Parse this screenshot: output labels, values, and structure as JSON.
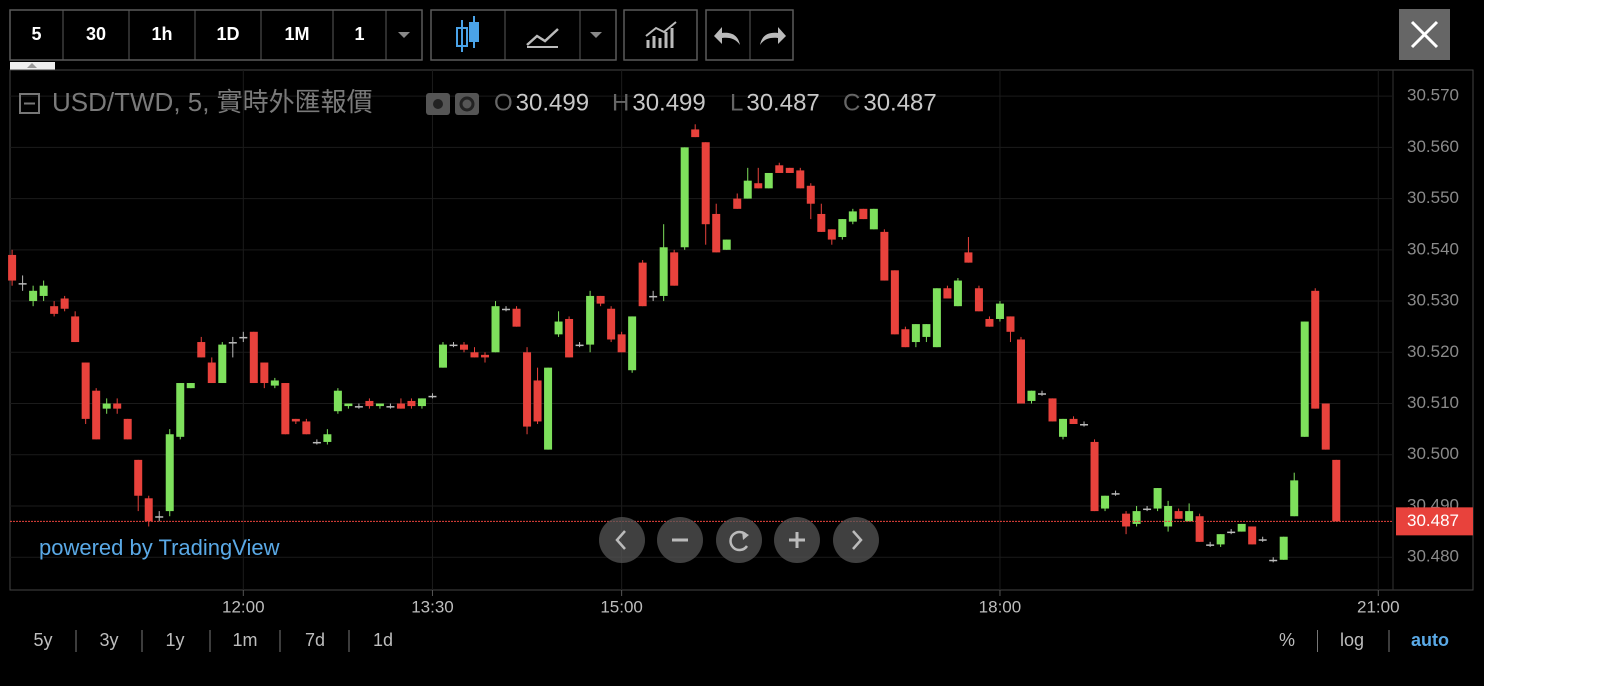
{
  "toolbar": {
    "intervals": [
      "5",
      "30",
      "1h",
      "1D",
      "1M",
      "1"
    ],
    "active": 0
  },
  "range_bar": {
    "ranges": [
      "5y",
      "3y",
      "1y",
      "1m",
      "7d",
      "1d"
    ],
    "options": [
      "%",
      "log",
      "auto"
    ],
    "active_option": 2
  },
  "chart_data": {
    "type": "candlestick",
    "symbol": "USD/TWD, 5, 實時外匯報價",
    "ohlc_legend": [
      {
        "label": "O",
        "value": 30.499
      },
      {
        "label": "H",
        "value": 30.499
      },
      {
        "label": "L",
        "value": 30.487
      },
      {
        "label": "C",
        "value": 30.487
      }
    ],
    "watermark": "powered by TradingView",
    "up_color": "#7ee05c",
    "down_color": "#e8423c",
    "grid": true,
    "xlim": [
      "10:09",
      "21:07"
    ],
    "xticks": [
      "12:00",
      "13:30",
      "15:00",
      "18:00",
      "21:00"
    ],
    "ylim": [
      30.4736,
      30.5751
    ],
    "yticks": [
      {
        "value": 30.48,
        "label": "30.480"
      },
      {
        "value": 30.49,
        "label": "30.490"
      },
      {
        "value": 30.5,
        "label": "30.500"
      },
      {
        "value": 30.51,
        "label": "30.510"
      },
      {
        "value": 30.52,
        "label": "30.520"
      },
      {
        "value": 30.53,
        "label": "30.530"
      },
      {
        "value": 30.54,
        "label": "30.540"
      },
      {
        "value": 30.55,
        "label": "30.550"
      },
      {
        "value": 30.56,
        "label": "30.560"
      },
      {
        "value": 30.57,
        "label": "30.570"
      }
    ],
    "last_price": {
      "value": 30.487,
      "label": "30.487"
    },
    "x": [
      "10:10",
      "10:15",
      "10:20",
      "10:25",
      "10:30",
      "10:35",
      "10:40",
      "10:45",
      "10:50",
      "10:55",
      "11:00",
      "11:05",
      "11:10",
      "11:15",
      "11:20",
      "11:25",
      "11:30",
      "11:35",
      "11:40",
      "11:45",
      "11:50",
      "11:55",
      "12:00",
      "12:05",
      "12:10",
      "12:15",
      "12:20",
      "12:25",
      "12:30",
      "12:35",
      "12:40",
      "12:45",
      "12:50",
      "12:55",
      "13:00",
      "13:05",
      "13:10",
      "13:15",
      "13:20",
      "13:25",
      "13:30",
      "13:35",
      "13:40",
      "13:45",
      "13:50",
      "13:55",
      "14:00",
      "14:05",
      "14:10",
      "14:15",
      "14:20",
      "14:25",
      "14:30",
      "14:35",
      "14:40",
      "14:45",
      "14:50",
      "14:55",
      "15:00",
      "15:05",
      "15:10",
      "15:15",
      "15:20",
      "15:25",
      "15:30",
      "15:35",
      "15:40",
      "15:45",
      "15:50",
      "15:55",
      "16:00",
      "16:05",
      "16:10",
      "16:15",
      "16:20",
      "16:25",
      "16:30",
      "16:35",
      "16:40",
      "16:45",
      "16:50",
      "16:55",
      "17:00",
      "17:05",
      "17:10",
      "17:15",
      "17:20",
      "17:25",
      "17:30",
      "17:35",
      "17:40",
      "17:45",
      "17:50",
      "17:55",
      "18:00",
      "18:05",
      "18:10",
      "18:15",
      "18:20",
      "18:25",
      "18:30",
      "18:35",
      "18:40",
      "18:45",
      "18:50",
      "18:55",
      "19:00",
      "19:05",
      "19:10",
      "19:15",
      "19:20",
      "19:25",
      "19:30",
      "19:35",
      "19:40",
      "19:45",
      "19:50",
      "19:55",
      "20:00",
      "20:05",
      "20:10",
      "20:15",
      "20:20",
      "20:25",
      "20:30",
      "20:35",
      "20:40"
    ],
    "ohlc": [
      [
        30.539,
        30.54,
        30.533,
        30.534
      ],
      [
        30.5335,
        30.535,
        30.532,
        30.5335
      ],
      [
        30.53,
        30.533,
        30.529,
        30.532
      ],
      [
        30.531,
        30.534,
        30.53,
        30.533
      ],
      [
        30.529,
        30.53,
        30.527,
        30.5275
      ],
      [
        30.5305,
        30.531,
        30.528,
        30.5285
      ],
      [
        30.527,
        30.528,
        30.522,
        30.522
      ],
      [
        30.518,
        30.518,
        30.506,
        30.507
      ],
      [
        30.5125,
        30.513,
        30.503,
        30.503
      ],
      [
        30.509,
        30.511,
        30.508,
        30.51
      ],
      [
        30.51,
        30.511,
        30.508,
        30.509
      ],
      [
        30.507,
        30.507,
        30.503,
        30.503
      ],
      [
        30.499,
        30.499,
        30.489,
        30.492
      ],
      [
        30.4915,
        30.492,
        30.486,
        30.487
      ],
      [
        30.488,
        30.489,
        30.487,
        30.488
      ],
      [
        30.489,
        30.505,
        30.488,
        30.504
      ],
      [
        30.5035,
        30.514,
        30.503,
        30.514
      ],
      [
        30.513,
        30.514,
        30.513,
        30.514
      ],
      [
        30.522,
        30.523,
        30.519,
        30.519
      ],
      [
        30.518,
        30.519,
        30.514,
        30.514
      ],
      [
        30.514,
        30.522,
        30.514,
        30.5215
      ],
      [
        30.522,
        30.523,
        30.519,
        30.522
      ],
      [
        30.523,
        30.524,
        30.522,
        30.523
      ],
      [
        30.524,
        30.524,
        30.514,
        30.514
      ],
      [
        30.518,
        30.518,
        30.513,
        30.514
      ],
      [
        30.5135,
        30.515,
        30.513,
        30.5145
      ],
      [
        30.514,
        30.514,
        30.504,
        30.504
      ],
      [
        30.507,
        30.507,
        30.506,
        30.5065
      ],
      [
        30.5065,
        30.507,
        30.504,
        30.504
      ],
      [
        30.5025,
        30.503,
        30.502,
        30.5025
      ],
      [
        30.5025,
        30.505,
        30.502,
        30.504
      ],
      [
        30.5085,
        30.513,
        30.508,
        30.5125
      ],
      [
        30.5095,
        30.51,
        30.509,
        30.51
      ],
      [
        30.5095,
        30.51,
        30.509,
        30.5095
      ],
      [
        30.5105,
        30.511,
        30.509,
        30.5095
      ],
      [
        30.5095,
        30.51,
        30.509,
        30.51
      ],
      [
        30.5095,
        30.51,
        30.509,
        30.5095
      ],
      [
        30.51,
        30.511,
        30.509,
        30.509
      ],
      [
        30.5105,
        30.511,
        30.509,
        30.5095
      ],
      [
        30.5095,
        30.511,
        30.509,
        30.511
      ],
      [
        30.5115,
        30.512,
        30.511,
        30.5115
      ],
      [
        30.517,
        30.522,
        30.517,
        30.5215
      ],
      [
        30.5215,
        30.522,
        30.521,
        30.5215
      ],
      [
        30.5215,
        30.522,
        30.52,
        30.5205
      ],
      [
        30.52,
        30.521,
        30.519,
        30.519
      ],
      [
        30.5195,
        30.52,
        30.518,
        30.519
      ],
      [
        30.52,
        30.53,
        30.52,
        30.529
      ],
      [
        30.5285,
        30.529,
        30.528,
        30.5285
      ],
      [
        30.5285,
        30.529,
        30.525,
        30.525
      ],
      [
        30.52,
        30.521,
        30.504,
        30.5055
      ],
      [
        30.5145,
        30.517,
        30.506,
        30.5065
      ],
      [
        30.501,
        30.517,
        30.501,
        30.517
      ],
      [
        30.5235,
        30.528,
        30.523,
        30.526
      ],
      [
        30.5265,
        30.527,
        30.519,
        30.519
      ],
      [
        30.5215,
        30.522,
        30.521,
        30.5215
      ],
      [
        30.5215,
        30.532,
        30.52,
        30.531
      ],
      [
        30.531,
        30.531,
        30.529,
        30.5295
      ],
      [
        30.5285,
        30.529,
        30.522,
        30.5225
      ],
      [
        30.5235,
        30.524,
        30.52,
        30.52
      ],
      [
        30.5165,
        30.527,
        30.516,
        30.527
      ],
      [
        30.5375,
        30.538,
        30.529,
        30.529
      ],
      [
        30.531,
        30.532,
        30.53,
        30.531
      ],
      [
        30.531,
        30.545,
        30.53,
        30.5405
      ],
      [
        30.5395,
        30.54,
        30.533,
        30.533
      ],
      [
        30.5405,
        30.56,
        30.54,
        30.56
      ],
      [
        30.5635,
        30.5645,
        30.562,
        30.562
      ],
      [
        30.561,
        30.561,
        30.541,
        30.545
      ],
      [
        30.547,
        30.549,
        30.5395,
        30.5395
      ],
      [
        30.54,
        30.542,
        30.54,
        30.542
      ],
      [
        30.55,
        30.551,
        30.548,
        30.548
      ],
      [
        30.55,
        30.556,
        30.55,
        30.5535
      ],
      [
        30.553,
        30.556,
        30.552,
        30.552
      ],
      [
        30.552,
        30.555,
        30.552,
        30.555
      ],
      [
        30.5565,
        30.557,
        30.555,
        30.555
      ],
      [
        30.556,
        30.556,
        30.555,
        30.555
      ],
      [
        30.5555,
        30.556,
        30.552,
        30.552
      ],
      [
        30.5525,
        30.553,
        30.546,
        30.549
      ],
      [
        30.547,
        30.549,
        30.5435,
        30.5435
      ],
      [
        30.544,
        30.544,
        30.541,
        30.542
      ],
      [
        30.5425,
        30.546,
        30.542,
        30.546
      ],
      [
        30.5455,
        30.548,
        30.545,
        30.5475
      ],
      [
        30.548,
        30.548,
        30.546,
        30.546
      ],
      [
        30.544,
        30.548,
        30.544,
        30.548
      ],
      [
        30.5435,
        30.544,
        30.534,
        30.534
      ],
      [
        30.536,
        30.536,
        30.5235,
        30.5235
      ],
      [
        30.5245,
        30.525,
        30.521,
        30.521
      ],
      [
        30.522,
        30.5255,
        30.521,
        30.5255
      ],
      [
        30.523,
        30.5255,
        30.522,
        30.5255
      ],
      [
        30.521,
        30.5325,
        30.521,
        30.5325
      ],
      [
        30.5325,
        30.533,
        30.5305,
        30.5305
      ],
      [
        30.529,
        30.5345,
        30.529,
        30.534
      ],
      [
        30.5395,
        30.5425,
        30.5375,
        30.5375
      ],
      [
        30.5325,
        30.533,
        30.528,
        30.528
      ],
      [
        30.5265,
        30.527,
        30.525,
        30.525
      ],
      [
        30.5265,
        30.53,
        30.526,
        30.5295
      ],
      [
        30.527,
        30.527,
        30.522,
        30.524
      ],
      [
        30.5225,
        30.523,
        30.51,
        30.51
      ],
      [
        30.5105,
        30.5125,
        30.51,
        30.5125
      ],
      [
        30.512,
        30.5125,
        30.5115,
        30.512
      ],
      [
        30.511,
        30.511,
        30.5065,
        30.5065
      ],
      [
        30.5035,
        30.507,
        30.503,
        30.507
      ],
      [
        30.507,
        30.5075,
        30.506,
        30.506
      ],
      [
        30.506,
        30.5065,
        30.5055,
        30.506
      ],
      [
        30.5025,
        30.503,
        30.489,
        30.489
      ],
      [
        30.4895,
        30.492,
        30.489,
        30.492
      ],
      [
        30.4925,
        30.493,
        30.492,
        30.4925
      ],
      [
        30.4885,
        30.489,
        30.4845,
        30.486
      ],
      [
        30.4865,
        30.49,
        30.486,
        30.489
      ],
      [
        30.4895,
        30.49,
        30.489,
        30.4895
      ],
      [
        30.4895,
        30.4935,
        30.489,
        30.4935
      ],
      [
        30.486,
        30.491,
        30.485,
        30.49
      ],
      [
        30.489,
        30.4895,
        30.4875,
        30.4875
      ],
      [
        30.487,
        30.4905,
        30.487,
        30.489
      ],
      [
        30.488,
        30.4885,
        30.483,
        30.483
      ],
      [
        30.4825,
        30.483,
        30.482,
        30.4825
      ],
      [
        30.4825,
        30.4845,
        30.482,
        30.4845
      ],
      [
        30.485,
        30.4855,
        30.4845,
        30.485
      ],
      [
        30.485,
        30.4865,
        30.485,
        30.4865
      ],
      [
        30.486,
        30.486,
        30.4825,
        30.4825
      ],
      [
        30.4835,
        30.484,
        30.483,
        30.4835
      ],
      [
        30.4795,
        30.48,
        30.479,
        30.4795
      ],
      [
        30.4795,
        30.484,
        30.4795,
        30.484
      ],
      [
        30.488,
        30.4965,
        30.488,
        30.495
      ],
      [
        30.5035,
        30.526,
        30.5035,
        30.526
      ],
      [
        30.532,
        30.5325,
        30.509,
        30.509
      ],
      [
        30.51,
        30.51,
        30.501,
        30.501
      ],
      [
        30.499,
        30.499,
        30.487,
        30.487
      ]
    ]
  }
}
